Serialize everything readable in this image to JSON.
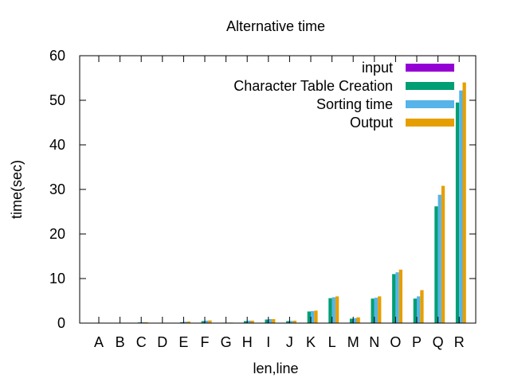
{
  "chart_data": {
    "type": "bar",
    "title": "Alternative time",
    "xlabel": "len,line",
    "ylabel": "time(sec)",
    "ylim": [
      0,
      60
    ],
    "yticks": [
      "0",
      "10",
      "20",
      "30",
      "40",
      "50",
      "60"
    ],
    "grid": false,
    "legend_position": "top-right",
    "categories": [
      "A",
      "B",
      "C",
      "D",
      "E",
      "F",
      "G",
      "H",
      "I",
      "J",
      "K",
      "L",
      "M",
      "N",
      "O",
      "P",
      "Q",
      "R"
    ],
    "series": [
      {
        "name": "input",
        "color": "#9400d3",
        "values": [
          0,
          0,
          0,
          0,
          0,
          0,
          0,
          0,
          0,
          0,
          0,
          0,
          0,
          0,
          0,
          0,
          0,
          0
        ]
      },
      {
        "name": "Character Table Creation",
        "color": "#009e73",
        "values": [
          0,
          0,
          0.15,
          0,
          0.2,
          0.45,
          0.1,
          0.45,
          0.8,
          0.45,
          2.6,
          5.6,
          1.0,
          5.5,
          11.0,
          5.5,
          26.2,
          49.5
        ]
      },
      {
        "name": "Sorting time",
        "color": "#56b4e9",
        "values": [
          0,
          0,
          0.2,
          0,
          0.3,
          0.55,
          0.1,
          0.55,
          0.9,
          0.5,
          2.7,
          5.8,
          1.1,
          5.7,
          11.4,
          6.0,
          28.8,
          52.2
        ]
      },
      {
        "name": "Output",
        "color": "#e69f00",
        "values": [
          0,
          0,
          0.2,
          0,
          0.35,
          0.6,
          0.12,
          0.55,
          0.9,
          0.55,
          2.8,
          6.0,
          1.3,
          6.0,
          12.0,
          7.4,
          30.8,
          54.0
        ]
      }
    ]
  }
}
